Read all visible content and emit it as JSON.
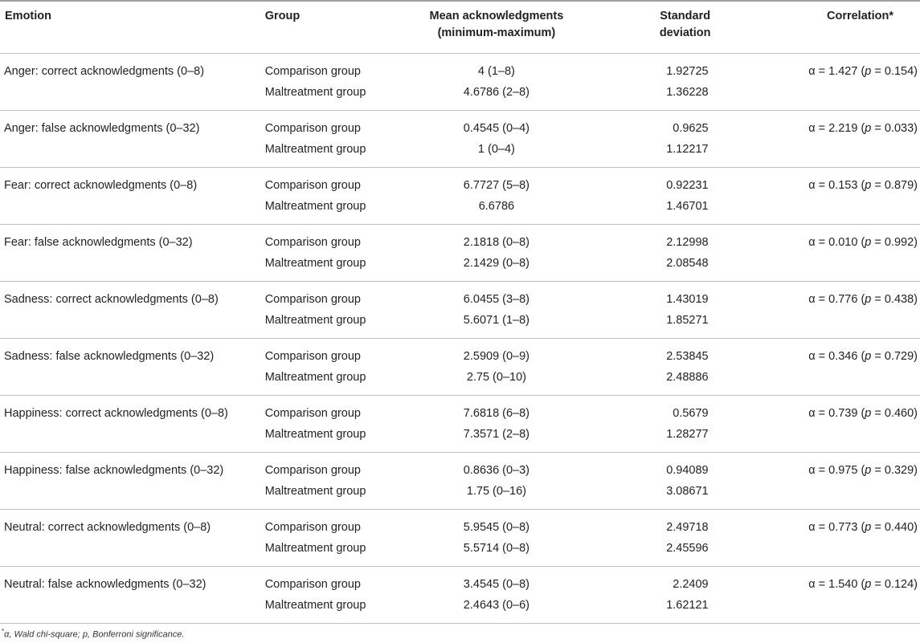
{
  "header": {
    "emotion": "Emotion",
    "group": "Group",
    "mean_line1": "Mean acknowledgments",
    "mean_line2": "(minimum-maximum)",
    "sd": "Standard deviation",
    "correlation": "Correlation*"
  },
  "rows": [
    {
      "emotion": "Anger: correct acknowledgments (0–8)",
      "group1": "Comparison group",
      "mean1": "4 (1–8)",
      "sd1": "1.92725",
      "group2": "Maltreatment group",
      "mean2": "4.6786 (2–8)",
      "sd2": "1.36228",
      "alpha": "α = 1.427 (",
      "p": "p",
      "pval": " = 0.154)"
    },
    {
      "emotion": "Anger: false acknowledgments (0–32)",
      "group1": "Comparison group",
      "mean1": "0.4545 (0–4)",
      "sd1": "0.9625",
      "group2": "Maltreatment group",
      "mean2": "1 (0–4)",
      "sd2": "1.12217",
      "alpha": "α = 2.219 (",
      "p": "p",
      "pval": " = 0.033)"
    },
    {
      "emotion": "Fear: correct acknowledgments (0–8)",
      "group1": "Comparison group",
      "mean1": "6.7727 (5–8)",
      "sd1": "0.92231",
      "group2": "Maltreatment group",
      "mean2": "6.6786",
      "sd2": "1.46701",
      "alpha": "α = 0.153 (",
      "p": "p",
      "pval": " = 0.879)"
    },
    {
      "emotion": "Fear: false acknowledgments (0–32)",
      "group1": "Comparison group",
      "mean1": "2.1818 (0–8)",
      "sd1": "2.12998",
      "group2": "Maltreatment group",
      "mean2": "2.1429 (0–8)",
      "sd2": "2.08548",
      "alpha": "α = 0.010 (",
      "p": "p",
      "pval": " = 0.992)"
    },
    {
      "emotion": "Sadness: correct acknowledgments (0–8)",
      "group1": "Comparison group",
      "mean1": "6.0455 (3–8)",
      "sd1": "1.43019",
      "group2": "Maltreatment group",
      "mean2": "5.6071 (1–8)",
      "sd2": "1.85271",
      "alpha": "α = 0.776 (",
      "p": "p",
      "pval": " = 0.438)"
    },
    {
      "emotion": "Sadness: false acknowledgments (0–32)",
      "group1": "Comparison group",
      "mean1": "2.5909 (0–9)",
      "sd1": "2.53845",
      "group2": "Maltreatment group",
      "mean2": "2.75 (0–10)",
      "sd2": "2.48886",
      "alpha": "α = 0.346 (",
      "p": "p",
      "pval": " = 0.729)"
    },
    {
      "emotion": "Happiness: correct acknowledgments (0–8)",
      "group1": "Comparison group",
      "mean1": "7.6818 (6–8)",
      "sd1": "0.5679",
      "group2": "Maltreatment group",
      "mean2": "7.3571 (2–8)",
      "sd2": "1.28277",
      "alpha": "α = 0.739 (",
      "p": "p",
      "pval": " = 0.460)"
    },
    {
      "emotion": "Happiness: false acknowledgments (0–32)",
      "group1": "Comparison group",
      "mean1": "0.8636 (0–3)",
      "sd1": "0.94089",
      "group2": "Maltreatment group",
      "mean2": "1.75 (0–16)",
      "sd2": "3.08671",
      "alpha": "α = 0.975 (",
      "p": "p",
      "pval": " = 0.329)"
    },
    {
      "emotion": "Neutral: correct acknowledgments (0–8)",
      "group1": "Comparison group",
      "mean1": "5.9545 (0–8)",
      "sd1": "2.49718",
      "group2": "Maltreatment group",
      "mean2": "5.5714 (0–8)",
      "sd2": "2.45596",
      "alpha": "α = 0.773 (",
      "p": "p",
      "pval": " = 0.440)"
    },
    {
      "emotion": "Neutral: false acknowledgments (0–32)",
      "group1": "Comparison group",
      "mean1": "3.4545 (0–8)",
      "sd1": "2.2409",
      "group2": "Maltreatment group",
      "mean2": "2.4643 (0–6)",
      "sd2": "1.62121",
      "alpha": "α = 1.540 (",
      "p": "p",
      "pval": " = 0.124)"
    }
  ],
  "footnote": {
    "marker": "*",
    "text": "α, Wald chi-square; p, Bonferroni significance."
  }
}
